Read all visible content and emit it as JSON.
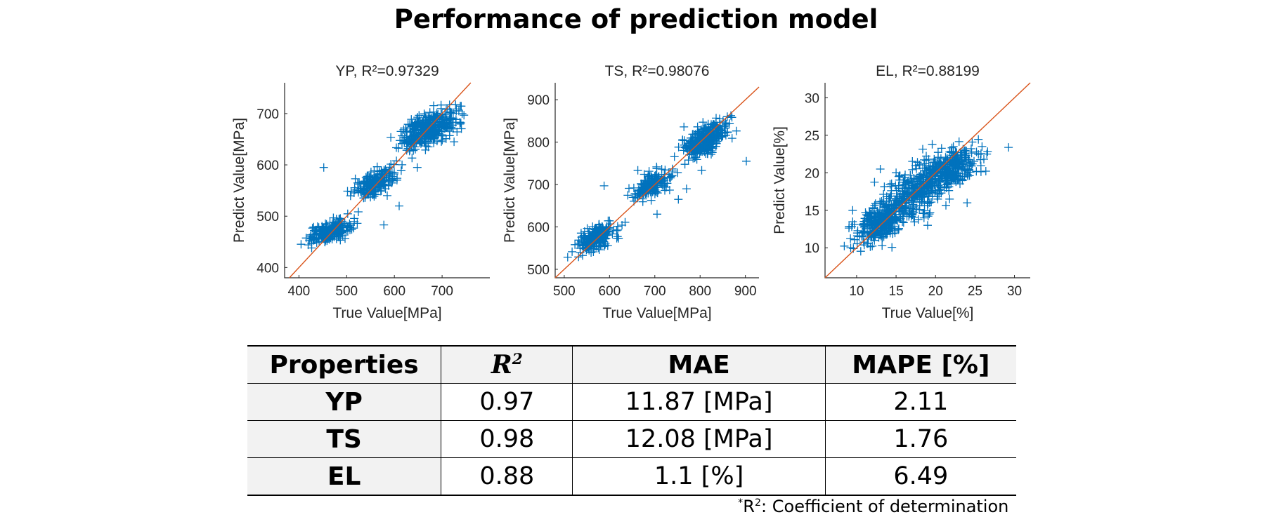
{
  "title": "Performance of prediction model",
  "chart_data": [
    {
      "type": "scatter",
      "title": "YP, R²=0.97329",
      "xlabel": "True Value[MPa]",
      "ylabel": "Predict Value[MPa]",
      "xlim": [
        370,
        800
      ],
      "ylim": [
        380,
        760
      ],
      "xticks": [
        400,
        500,
        600,
        700
      ],
      "yticks": [
        400,
        500,
        600,
        700
      ],
      "marker": "+",
      "color": "#0072BD",
      "reference_line_color": "#D95319",
      "reference_line": "y = x",
      "clusters": [
        {
          "x_center": 465,
          "y_center": 470,
          "x_spread": 22,
          "y_spread": 11,
          "n": 230
        },
        {
          "x_center": 560,
          "y_center": 565,
          "x_spread": 22,
          "y_spread": 14,
          "n": 190
        },
        {
          "x_center": 670,
          "y_center": 670,
          "x_spread": 28,
          "y_spread": 18,
          "n": 380
        }
      ],
      "outliers": [
        [
          452,
          595
        ],
        [
          578,
          483
        ],
        [
          585,
          540
        ],
        [
          610,
          520
        ],
        [
          648,
          595
        ],
        [
          725,
          645
        ],
        [
          742,
          700
        ],
        [
          735,
          705
        ]
      ]
    },
    {
      "type": "scatter",
      "title": "TS, R²=0.98076",
      "xlabel": "True Value[MPa]",
      "ylabel": "Predict Value[MPa]",
      "xlim": [
        480,
        930
      ],
      "ylim": [
        480,
        940
      ],
      "xticks": [
        500,
        600,
        700,
        800,
        900
      ],
      "yticks": [
        500,
        600,
        700,
        800,
        900
      ],
      "marker": "+",
      "color": "#0072BD",
      "reference_line_color": "#D95319",
      "reference_line": "y = x",
      "clusters": [
        {
          "x_center": 570,
          "y_center": 575,
          "x_spread": 20,
          "y_spread": 16,
          "n": 230
        },
        {
          "x_center": 695,
          "y_center": 700,
          "x_spread": 20,
          "y_spread": 18,
          "n": 170
        },
        {
          "x_center": 810,
          "y_center": 805,
          "x_spread": 22,
          "y_spread": 20,
          "n": 340
        }
      ],
      "outliers": [
        [
          588,
          697
        ],
        [
          705,
          630
        ],
        [
          752,
          665
        ],
        [
          770,
          690
        ],
        [
          902,
          755
        ],
        [
          860,
          860
        ]
      ]
    },
    {
      "type": "scatter",
      "title": "EL, R²=0.88199",
      "xlabel": "True Value[%]",
      "ylabel": "Predict Value[%]",
      "xlim": [
        6,
        32
      ],
      "ylim": [
        6,
        32
      ],
      "xticks": [
        10,
        15,
        20,
        25,
        30
      ],
      "yticks": [
        10,
        15,
        20,
        25,
        30
      ],
      "marker": "+",
      "color": "#0072BD",
      "reference_line_color": "#D95319",
      "reference_line": "y = x",
      "clusters": [
        {
          "x_center": 13,
          "y_center": 13.5,
          "x_spread": 1.6,
          "y_spread": 1.5,
          "n": 280
        },
        {
          "x_center": 17,
          "y_center": 17,
          "x_spread": 2.2,
          "y_spread": 2.2,
          "n": 300
        },
        {
          "x_center": 21.5,
          "y_center": 20.5,
          "x_spread": 2.2,
          "y_spread": 1.5,
          "n": 320
        }
      ],
      "outliers": [
        [
          13,
          20.5
        ],
        [
          15,
          20
        ],
        [
          19,
          13
        ],
        [
          24,
          16
        ],
        [
          26.5,
          22.5
        ],
        [
          9.5,
          15
        ]
      ]
    }
  ],
  "table": {
    "headers": [
      "Properties",
      "R",
      "2",
      "MAE",
      "MAPE [%]"
    ],
    "rows": [
      {
        "property": "YP",
        "r2": "0.97",
        "mae": "11.87  [MPa]",
        "mape": "2.11"
      },
      {
        "property": "TS",
        "r2": "0.98",
        "mae": "12.08  [MPa]",
        "mape": "1.76"
      },
      {
        "property": "EL",
        "r2": "0.88",
        "mae": "1.1  [%]",
        "mape": "6.49"
      }
    ]
  },
  "footnote": {
    "star": "*",
    "r": "R",
    "sup": "2",
    "text": ": Coefficient of determination"
  }
}
